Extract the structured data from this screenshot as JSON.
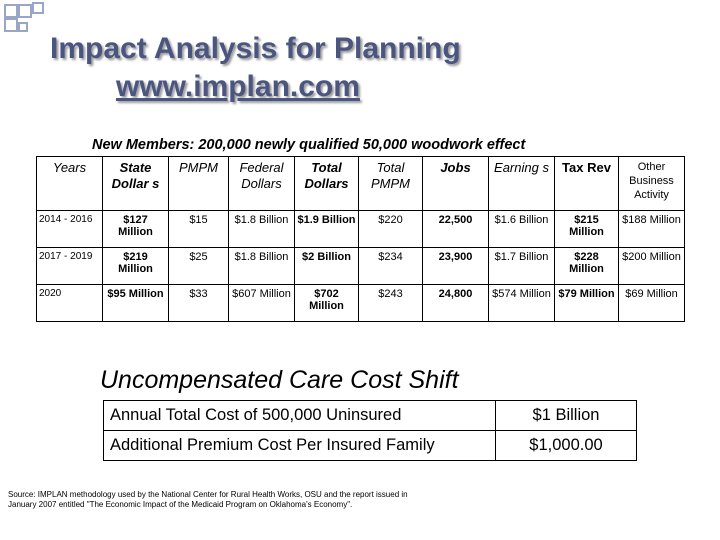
{
  "title": {
    "line1": "Impact Analysis for Planning",
    "line2": "www.implan.com"
  },
  "subtitle": "New Members:  200,000 newly qualified 50,000 woodwork effect",
  "impact_table": {
    "headers": [
      "Years",
      "State Dollar s",
      "PMPM",
      "Federal Dollars",
      "Total Dollars",
      "Total PMPM",
      "Jobs",
      "Earning s",
      "Tax Rev",
      "Other Business Activity"
    ],
    "rows": [
      [
        "2014 - 2016",
        "$127 Million",
        "$15",
        "$1.8 Billion",
        "$1.9 Billion",
        "$220",
        "22,500",
        "$1.6 Billion",
        "$215 Million",
        "$188 Million"
      ],
      [
        "2017 - 2019",
        "$219 Million",
        "$25",
        "$1.8 Billion",
        "$2 Billion",
        "$234",
        "23,900",
        "$1.7 Billion",
        "$228 Million",
        "$200 Million"
      ],
      [
        "2020",
        "$95 Million",
        "$33",
        "$607 Million",
        "$702 Million",
        "$243",
        "24,800",
        "$574 Million",
        "$79 Million",
        "$69 Million"
      ]
    ]
  },
  "cost_section": {
    "heading": "Uncompensated Care Cost Shift",
    "rows": [
      {
        "label": "Annual Total Cost of 500,000 Uninsured",
        "value": "$1 Billion"
      },
      {
        "label": "Additional Premium Cost Per Insured Family",
        "value": "$1,000.00"
      }
    ]
  },
  "source": "Source:  IMPLAN methodology used by the National Center for Rural Health Works, OSU and the report issued in January 2007 entitled \"The Economic Impact of the Medicaid Program on Oklahoma's Economy\"."
}
